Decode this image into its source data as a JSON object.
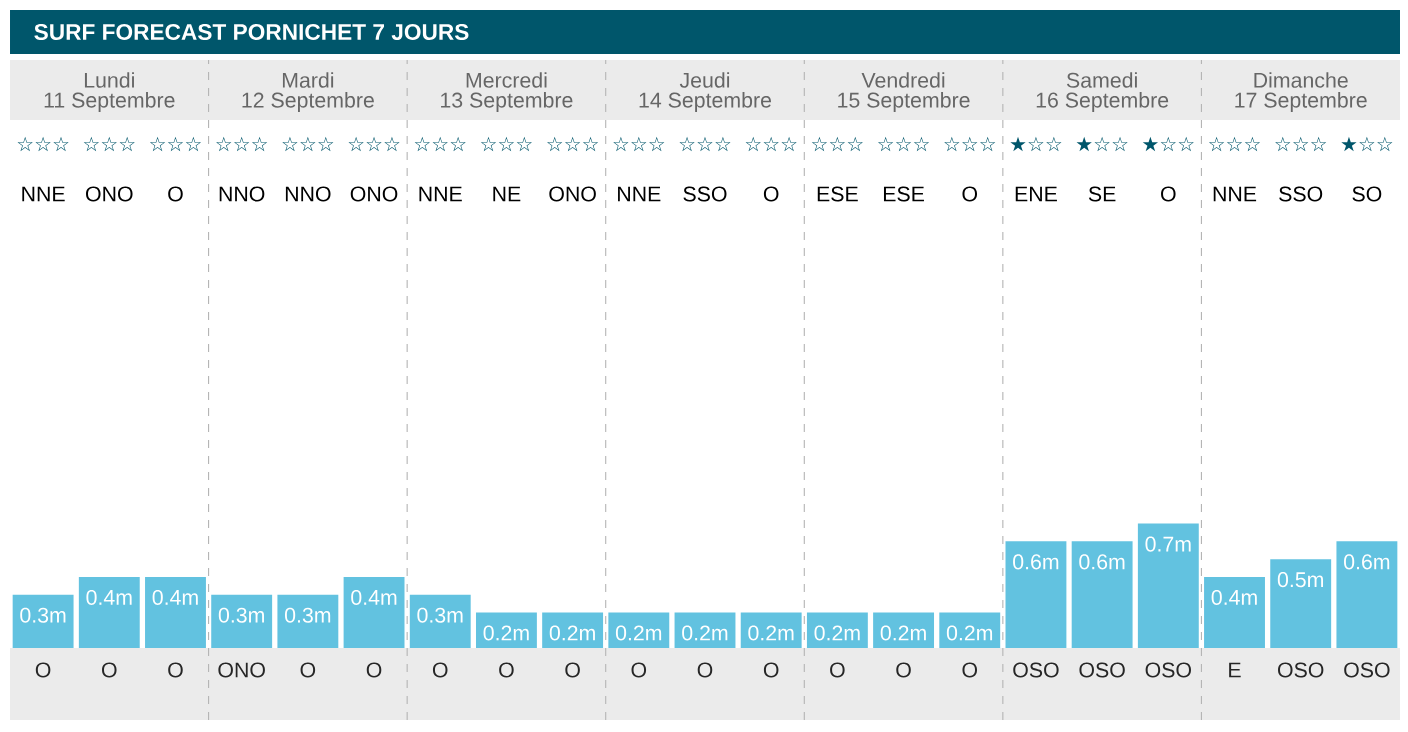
{
  "chart_data": {
    "type": "bar",
    "title": "SURF FORECAST PORNICHET 7 JOURS",
    "categories": [
      "O",
      "O",
      "O",
      "ONO",
      "O",
      "O",
      "O",
      "O",
      "O",
      "O",
      "O",
      "O",
      "O",
      "O",
      "O",
      "OSO",
      "OSO",
      "OSO",
      "E",
      "OSO",
      "OSO"
    ],
    "values": [
      0.3,
      0.4,
      0.4,
      0.3,
      0.3,
      0.4,
      0.3,
      0.2,
      0.2,
      0.2,
      0.2,
      0.2,
      0.2,
      0.2,
      0.2,
      0.6,
      0.6,
      0.7,
      0.4,
      0.5,
      0.6
    ],
    "value_labels": [
      "0.3m",
      "0.4m",
      "0.4m",
      "0.3m",
      "0.3m",
      "0.4m",
      "0.3m",
      "0.2m",
      "0.2m",
      "0.2m",
      "0.2m",
      "0.2m",
      "0.2m",
      "0.2m",
      "0.2m",
      "0.6m",
      "0.6m",
      "0.7m",
      "0.4m",
      "0.5m",
      "0.6m"
    ],
    "color": "#62c2e0",
    "annotations": [
      "Lundi",
      "11 Septembre",
      "Mardi",
      "12 Septembre",
      "Mercredi",
      "13 Septembre",
      "Jeudi",
      "14 Septembre",
      "Vendredi",
      "15 Septembre",
      "Samedi",
      "16 Septembre",
      "Dimanche",
      "17 Septembre",
      "☆☆☆",
      "☆☆☆",
      "☆☆☆",
      "☆☆☆",
      "☆☆☆",
      "☆☆☆",
      "☆☆☆",
      "☆☆☆",
      "☆☆☆",
      "☆☆☆",
      "☆☆☆",
      "☆☆☆",
      "☆☆☆",
      "☆☆☆",
      "☆☆☆",
      "★☆☆",
      "★☆☆",
      "★☆☆",
      "☆☆☆",
      "☆☆☆",
      "★☆☆",
      "NNE",
      "ONO",
      "O",
      "NNO",
      "NNO",
      "ONO",
      "NNE",
      "NE",
      "ONO",
      "NNE",
      "SSO",
      "O",
      "ESE",
      "ESE",
      "O",
      "ENE",
      "SE",
      "O",
      "NNE",
      "SSO",
      "SO"
    ]
  }
}
